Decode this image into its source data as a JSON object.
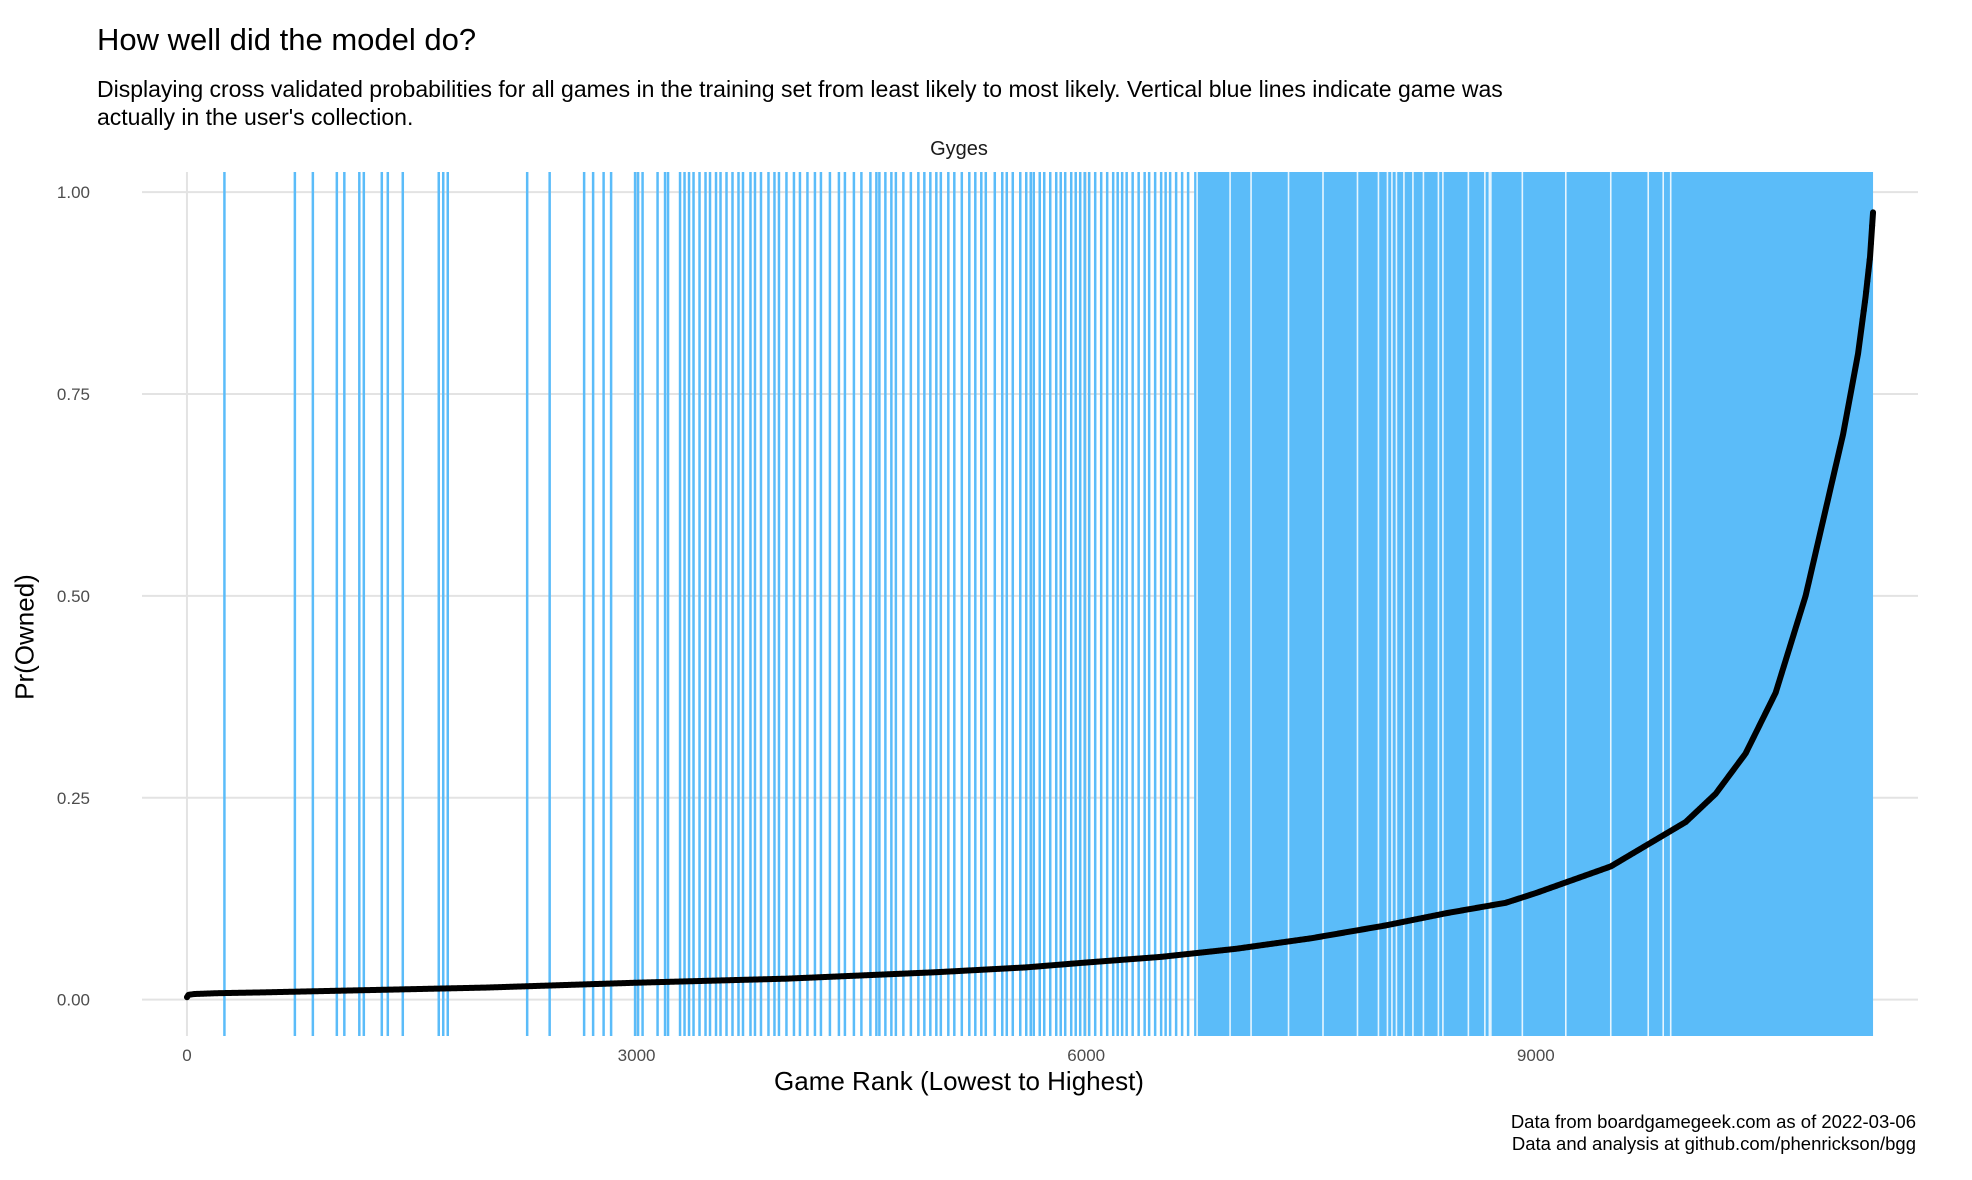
{
  "chart_data": {
    "type": "scatter",
    "title": "How well did the model do?",
    "subtitle": "Displaying cross validated probabilities for all games in the training set from least likely to most likely. Vertical blue lines indicate game was actually in the user's collection.",
    "facet": "Gyges",
    "xlabel": "Game Rank (Lowest to Highest)",
    "ylabel": "Pr(Owned)",
    "xlim": [
      -300,
      11550
    ],
    "ylim": [
      -0.045,
      1.025
    ],
    "x_ticks": [
      0,
      3000,
      6000,
      9000
    ],
    "x_tick_labels": [
      "0",
      "3000",
      "6000",
      "9000"
    ],
    "y_ticks": [
      0,
      0.25,
      0.5,
      0.75,
      1.0
    ],
    "y_tick_labels": [
      "0.00",
      "0.25",
      "0.50",
      "0.75",
      "1.00"
    ],
    "n_games": 11250,
    "curve_points": [
      [
        0,
        0.003
      ],
      [
        10,
        0.006
      ],
      [
        50,
        0.007
      ],
      [
        200,
        0.008
      ],
      [
        500,
        0.009
      ],
      [
        1000,
        0.011
      ],
      [
        2000,
        0.015
      ],
      [
        3000,
        0.021
      ],
      [
        4000,
        0.026
      ],
      [
        5000,
        0.034
      ],
      [
        5600,
        0.04
      ],
      [
        6000,
        0.046
      ],
      [
        6500,
        0.053
      ],
      [
        7000,
        0.063
      ],
      [
        7500,
        0.076
      ],
      [
        8000,
        0.092
      ],
      [
        8400,
        0.107
      ],
      [
        8800,
        0.12
      ],
      [
        9000,
        0.132
      ],
      [
        9500,
        0.165
      ],
      [
        10000,
        0.22
      ],
      [
        10200,
        0.255
      ],
      [
        10400,
        0.305
      ],
      [
        10600,
        0.38
      ],
      [
        10800,
        0.5
      ],
      [
        10950,
        0.62
      ],
      [
        11050,
        0.7
      ],
      [
        11150,
        0.8
      ],
      [
        11200,
        0.87
      ],
      [
        11230,
        0.92
      ],
      [
        11250,
        0.975
      ]
    ],
    "owned_ranks_sparse": [
      250,
      720,
      840,
      1000,
      1050,
      1150,
      1180,
      1300,
      1340,
      1440,
      1680,
      1710,
      1740,
      2270,
      2420,
      2650,
      2710,
      2780,
      2830,
      2990,
      3010,
      3040,
      3140,
      3190,
      3210
    ],
    "owned_ranks_dense_range": [
      3280,
      6720
    ],
    "owned_fill_range": [
      6720,
      11250
    ],
    "owned_gaps_in_fill": [
      6740,
      6960,
      7100,
      7350,
      7580,
      7810,
      7950,
      8010,
      8040,
      8070,
      8120,
      8180,
      8250,
      8350,
      8380,
      8550,
      8660,
      8690,
      8700,
      8910,
      9200,
      9500,
      9750,
      9850,
      9900
    ],
    "owned_dense_ticks": [
      3290,
      3320,
      3350,
      3380,
      3420,
      3460,
      3490,
      3530,
      3560,
      3600,
      3640,
      3680,
      3710,
      3760,
      3790,
      3830,
      3880,
      3920,
      3950,
      4000,
      4050,
      4090,
      4140,
      4190,
      4230,
      4290,
      4350,
      4390,
      4450,
      4500,
      4560,
      4600,
      4620,
      4660,
      4700,
      4730,
      4780,
      4830,
      4880,
      4920,
      4960,
      5000,
      5030,
      5080,
      5120,
      5170,
      5220,
      5260,
      5300,
      5330,
      5390,
      5440,
      5470,
      5510,
      5560,
      5600,
      5630,
      5650,
      5690,
      5720,
      5760,
      5800,
      5830,
      5860,
      5900,
      5930,
      5960,
      5990,
      6020,
      6060,
      6100,
      6140,
      6180,
      6210,
      6240,
      6270,
      6310,
      6350,
      6390,
      6420,
      6460,
      6500,
      6530,
      6560,
      6600,
      6640,
      6680
    ],
    "colors": {
      "owned_line": "#5bbcf9",
      "points": "#000000",
      "grid": "#e3e3e3"
    }
  },
  "caption": {
    "line1": "Data from boardgamegeek.com as of 2022-03-06",
    "line2": "Data and analysis at github.com/phenrickson/bgg"
  }
}
